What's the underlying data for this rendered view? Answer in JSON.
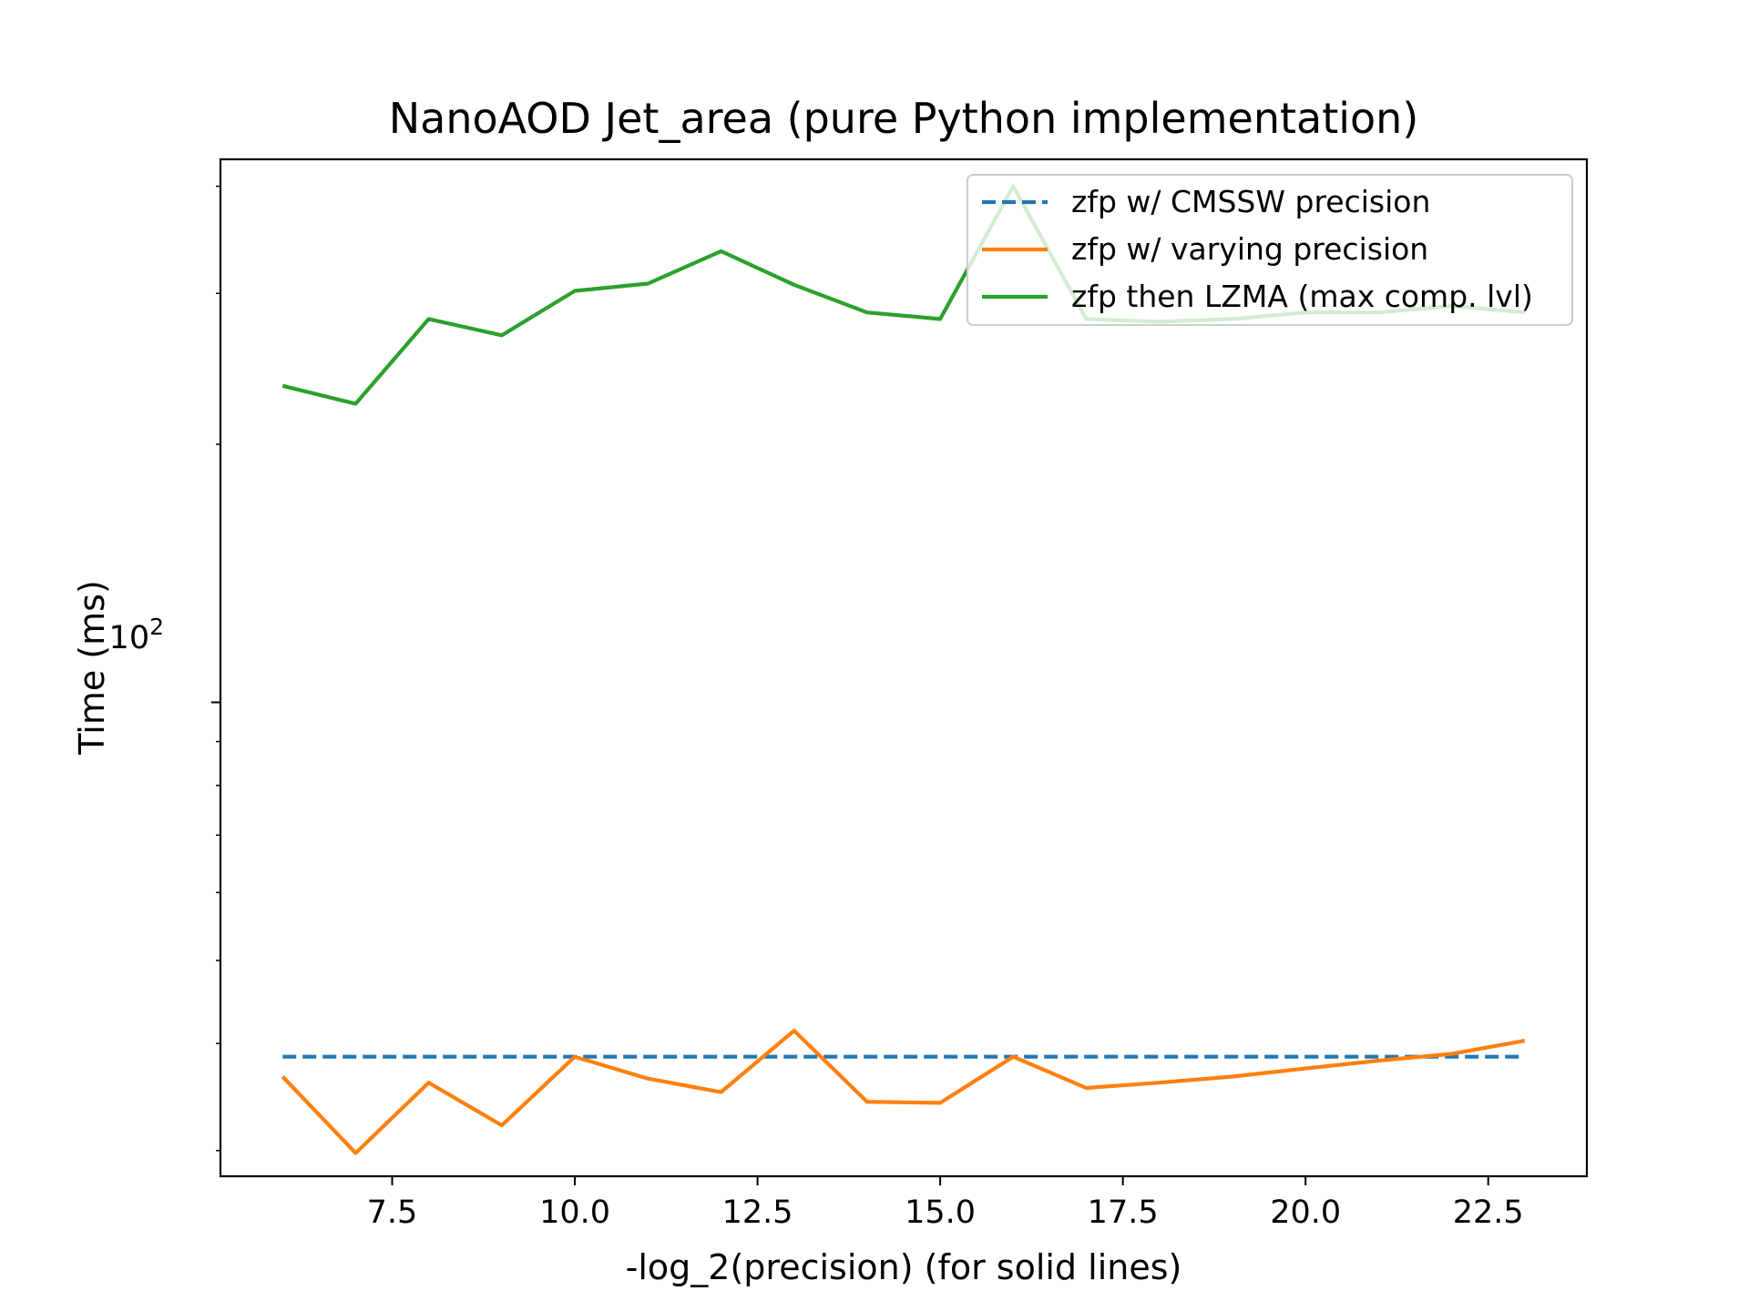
{
  "chart_data": {
    "type": "line",
    "title": "NanoAOD Jet_area (pure Python implementation)",
    "xlabel": "-log_2(precision) (for solid lines)",
    "ylabel": "Time (ms)",
    "yscale": "log",
    "xlim": [
      5.15,
      23.85
    ],
    "ylim": [
      28.0,
      430.0
    ],
    "xticks": [
      7.5,
      10.0,
      12.5,
      15.0,
      17.5,
      20.0,
      22.5
    ],
    "xtick_labels": [
      "7.5",
      "10.0",
      "12.5",
      "15.0",
      "17.5",
      "20.0",
      "22.5"
    ],
    "ytick_label": {
      "base": "10",
      "exponent": "2",
      "value": 100
    },
    "grid": false,
    "legend_position": "top-right",
    "series": [
      {
        "name": "zfp w/ CMSSW precision",
        "color": "#1f77b4",
        "style": "dashed",
        "x": [
          6,
          23
        ],
        "y": [
          38.6,
          38.6
        ]
      },
      {
        "name": "zfp w/ varying precision",
        "color": "#ff7f0e",
        "style": "solid",
        "x": [
          6,
          7,
          8,
          9,
          10,
          11,
          12,
          13,
          14,
          15,
          16,
          17,
          18,
          19,
          20,
          21,
          22,
          23
        ],
        "y": [
          36.6,
          29.8,
          36.0,
          32.1,
          38.6,
          36.4,
          35.1,
          41.4,
          34.2,
          34.1,
          38.6,
          35.5,
          36.0,
          36.6,
          37.4,
          38.2,
          38.9,
          40.3
        ]
      },
      {
        "name": "zfp then LZMA (max comp. lvl)",
        "color": "#2ca02c",
        "style": "solid",
        "x": [
          6,
          7,
          8,
          9,
          10,
          11,
          12,
          13,
          14,
          15,
          16,
          17,
          18,
          19,
          20,
          21,
          22,
          23
        ],
        "y": [
          234,
          223,
          280,
          268,
          302,
          308,
          336,
          307,
          285,
          280,
          400,
          280,
          278,
          280,
          285,
          285,
          290,
          285
        ]
      }
    ]
  }
}
